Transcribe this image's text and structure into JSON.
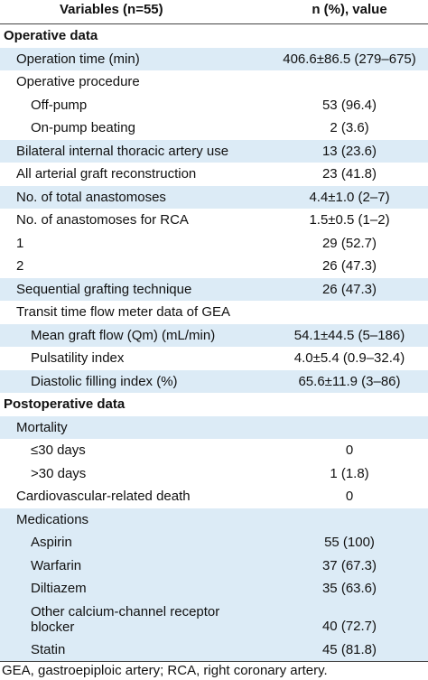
{
  "header": {
    "variables_label": "Variables (n=55)",
    "value_label": "n (%), value"
  },
  "rows": [
    {
      "label": "Operative data",
      "value": "",
      "type": "section",
      "shaded": false
    },
    {
      "label": "Operation time (min)",
      "value": "406.6±86.5 (279–675)",
      "indent": 1,
      "shaded": true
    },
    {
      "label": "Operative procedure",
      "value": "",
      "indent": 1,
      "shaded": false
    },
    {
      "label": "Off-pump",
      "value": "53 (96.4)",
      "indent": 2,
      "shaded": false
    },
    {
      "label": "On-pump beating",
      "value": "2 (3.6)",
      "indent": 2,
      "shaded": false
    },
    {
      "label": "Bilateral internal thoracic artery use",
      "value": "13 (23.6)",
      "indent": 1,
      "shaded": true
    },
    {
      "label": "All arterial graft reconstruction",
      "value": "23 (41.8)",
      "indent": 1,
      "shaded": false
    },
    {
      "label": "No. of total anastomoses",
      "value": "4.4±1.0 (2–7)",
      "indent": 1,
      "shaded": true
    },
    {
      "label": "No. of anastomoses for RCA",
      "value": "1.5±0.5 (1–2)",
      "indent": 1,
      "shaded": false
    },
    {
      "label": "1",
      "value": "29 (52.7)",
      "indent": 1,
      "shaded": false
    },
    {
      "label": "2",
      "value": "26 (47.3)",
      "indent": 1,
      "shaded": false
    },
    {
      "label": "Sequential grafting technique",
      "value": "26 (47.3)",
      "indent": 1,
      "shaded": true
    },
    {
      "label": "Transit time flow meter data of GEA",
      "value": "",
      "indent": 1,
      "shaded": false
    },
    {
      "label": "Mean graft flow (Qm) (mL/min)",
      "value": "54.1±44.5 (5–186)",
      "indent": 2,
      "shaded": true
    },
    {
      "label": "Pulsatility index",
      "value": "4.0±5.4 (0.9–32.4)",
      "indent": 2,
      "shaded": false
    },
    {
      "label": "Diastolic filling index (%)",
      "value": "65.6±11.9 (3–86)",
      "indent": 2,
      "shaded": true
    },
    {
      "label": "Postoperative data",
      "value": "",
      "type": "section",
      "shaded": false
    },
    {
      "label": "Mortality",
      "value": "",
      "indent": 1,
      "shaded": true
    },
    {
      "label": "≤30 days",
      "value": "0",
      "indent": 2,
      "shaded": false
    },
    {
      "label": ">30 days",
      "value": "1 (1.8)",
      "indent": 2,
      "shaded": false
    },
    {
      "label": "Cardiovascular-related death",
      "value": "0",
      "indent": 1,
      "shaded": false
    },
    {
      "label": "Medications",
      "value": "",
      "indent": 1,
      "shaded": true
    },
    {
      "label": "Aspirin",
      "value": "55 (100)",
      "indent": 2,
      "shaded": true
    },
    {
      "label": "Warfarin",
      "value": "37 (67.3)",
      "indent": 2,
      "shaded": true
    },
    {
      "label": "Diltiazem",
      "value": "35 (63.6)",
      "indent": 2,
      "shaded": true
    },
    {
      "label": "Other calcium-channel receptor",
      "label2": "blocker",
      "value": "40 (72.7)",
      "indent": 2,
      "shaded": true,
      "tall": true
    },
    {
      "label": "Statin",
      "value": "45 (81.8)",
      "indent": 2,
      "shaded": true
    }
  ],
  "footer": "GEA, gastroepiploic artery; RCA, right coronary artery."
}
